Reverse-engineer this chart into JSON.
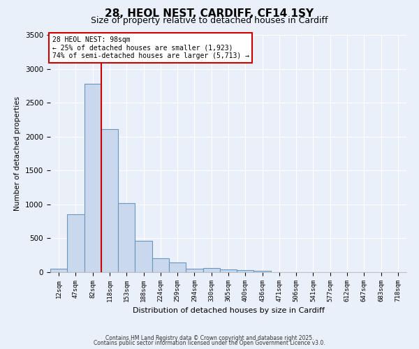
{
  "title1": "28, HEOL NEST, CARDIFF, CF14 1SY",
  "title2": "Size of property relative to detached houses in Cardiff",
  "xlabel": "Distribution of detached houses by size in Cardiff",
  "ylabel": "Number of detached properties",
  "categories": [
    "12sqm",
    "47sqm",
    "82sqm",
    "118sqm",
    "153sqm",
    "188sqm",
    "224sqm",
    "259sqm",
    "294sqm",
    "330sqm",
    "365sqm",
    "400sqm",
    "436sqm",
    "471sqm",
    "506sqm",
    "541sqm",
    "577sqm",
    "612sqm",
    "647sqm",
    "683sqm",
    "718sqm"
  ],
  "values": [
    50,
    850,
    2780,
    2110,
    1020,
    460,
    210,
    140,
    50,
    60,
    40,
    30,
    20,
    5,
    3,
    2,
    1,
    1,
    1,
    1,
    0
  ],
  "bar_color": "#c9d8ec",
  "bar_edge_color": "#6b96bf",
  "ylim": [
    0,
    3500
  ],
  "yticks": [
    0,
    500,
    1000,
    1500,
    2000,
    2500,
    3000,
    3500
  ],
  "vline_color": "#cc0000",
  "annotation_title": "28 HEOL NEST: 98sqm",
  "annotation_line1": "← 25% of detached houses are smaller (1,923)",
  "annotation_line2": "74% of semi-detached houses are larger (5,713) →",
  "annotation_box_color": "#cc0000",
  "annotation_box_fill": "#ffffff",
  "bg_color": "#eaf0fa",
  "footnote1": "Contains HM Land Registry data © Crown copyright and database right 2025.",
  "footnote2": "Contains public sector information licensed under the Open Government Licence v3.0.",
  "grid_color": "#ffffff",
  "title1_fontsize": 11,
  "title2_fontsize": 9
}
